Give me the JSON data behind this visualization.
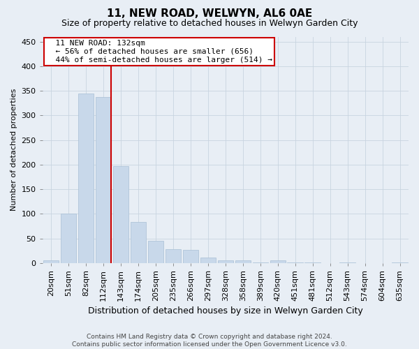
{
  "title": "11, NEW ROAD, WELWYN, AL6 0AE",
  "subtitle": "Size of property relative to detached houses in Welwyn Garden City",
  "xlabel": "Distribution of detached houses by size in Welwyn Garden City",
  "ylabel": "Number of detached properties",
  "footer_line1": "Contains HM Land Registry data © Crown copyright and database right 2024.",
  "footer_line2": "Contains public sector information licensed under the Open Government Licence v3.0.",
  "bar_labels": [
    "20sqm",
    "51sqm",
    "82sqm",
    "112sqm",
    "143sqm",
    "174sqm",
    "205sqm",
    "235sqm",
    "266sqm",
    "297sqm",
    "328sqm",
    "358sqm",
    "389sqm",
    "420sqm",
    "451sqm",
    "481sqm",
    "512sqm",
    "543sqm",
    "574sqm",
    "604sqm",
    "635sqm"
  ],
  "bar_values": [
    5,
    100,
    345,
    338,
    197,
    83,
    46,
    28,
    27,
    11,
    6,
    5,
    1,
    5,
    1,
    1,
    0,
    1,
    0,
    0,
    1
  ],
  "bar_color": "#c8d8ea",
  "bar_edge_color": "#a8bfd4",
  "grid_color": "#c8d4e0",
  "vline_x_index": 3,
  "vline_color": "#cc0000",
  "annotation_text_line1": "  11 NEW ROAD: 132sqm",
  "annotation_text_line2": "  ← 56% of detached houses are smaller (656)",
  "annotation_text_line3": "  44% of semi-detached houses are larger (514) →",
  "annotation_box_facecolor": "#ffffff",
  "annotation_box_edgecolor": "#cc0000",
  "ylim": [
    0,
    460
  ],
  "yticks": [
    0,
    50,
    100,
    150,
    200,
    250,
    300,
    350,
    400,
    450
  ],
  "background_color": "#e8eef5",
  "axes_background_color": "#e8eef5",
  "title_fontsize": 11,
  "subtitle_fontsize": 9,
  "ylabel_fontsize": 8,
  "xlabel_fontsize": 9,
  "tick_fontsize": 8,
  "footer_fontsize": 6.5
}
